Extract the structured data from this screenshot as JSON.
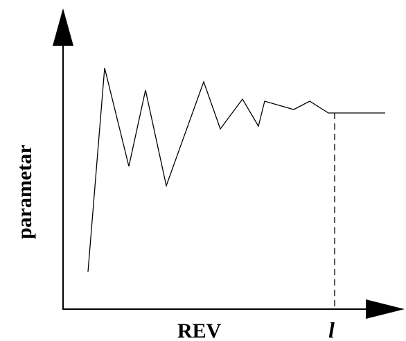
{
  "diagram": {
    "x_axis_label": "REV",
    "y_axis_label": "parametar",
    "marker_label": "l"
  },
  "colors": {
    "ink": "#000000",
    "background": "#ffffff"
  }
}
